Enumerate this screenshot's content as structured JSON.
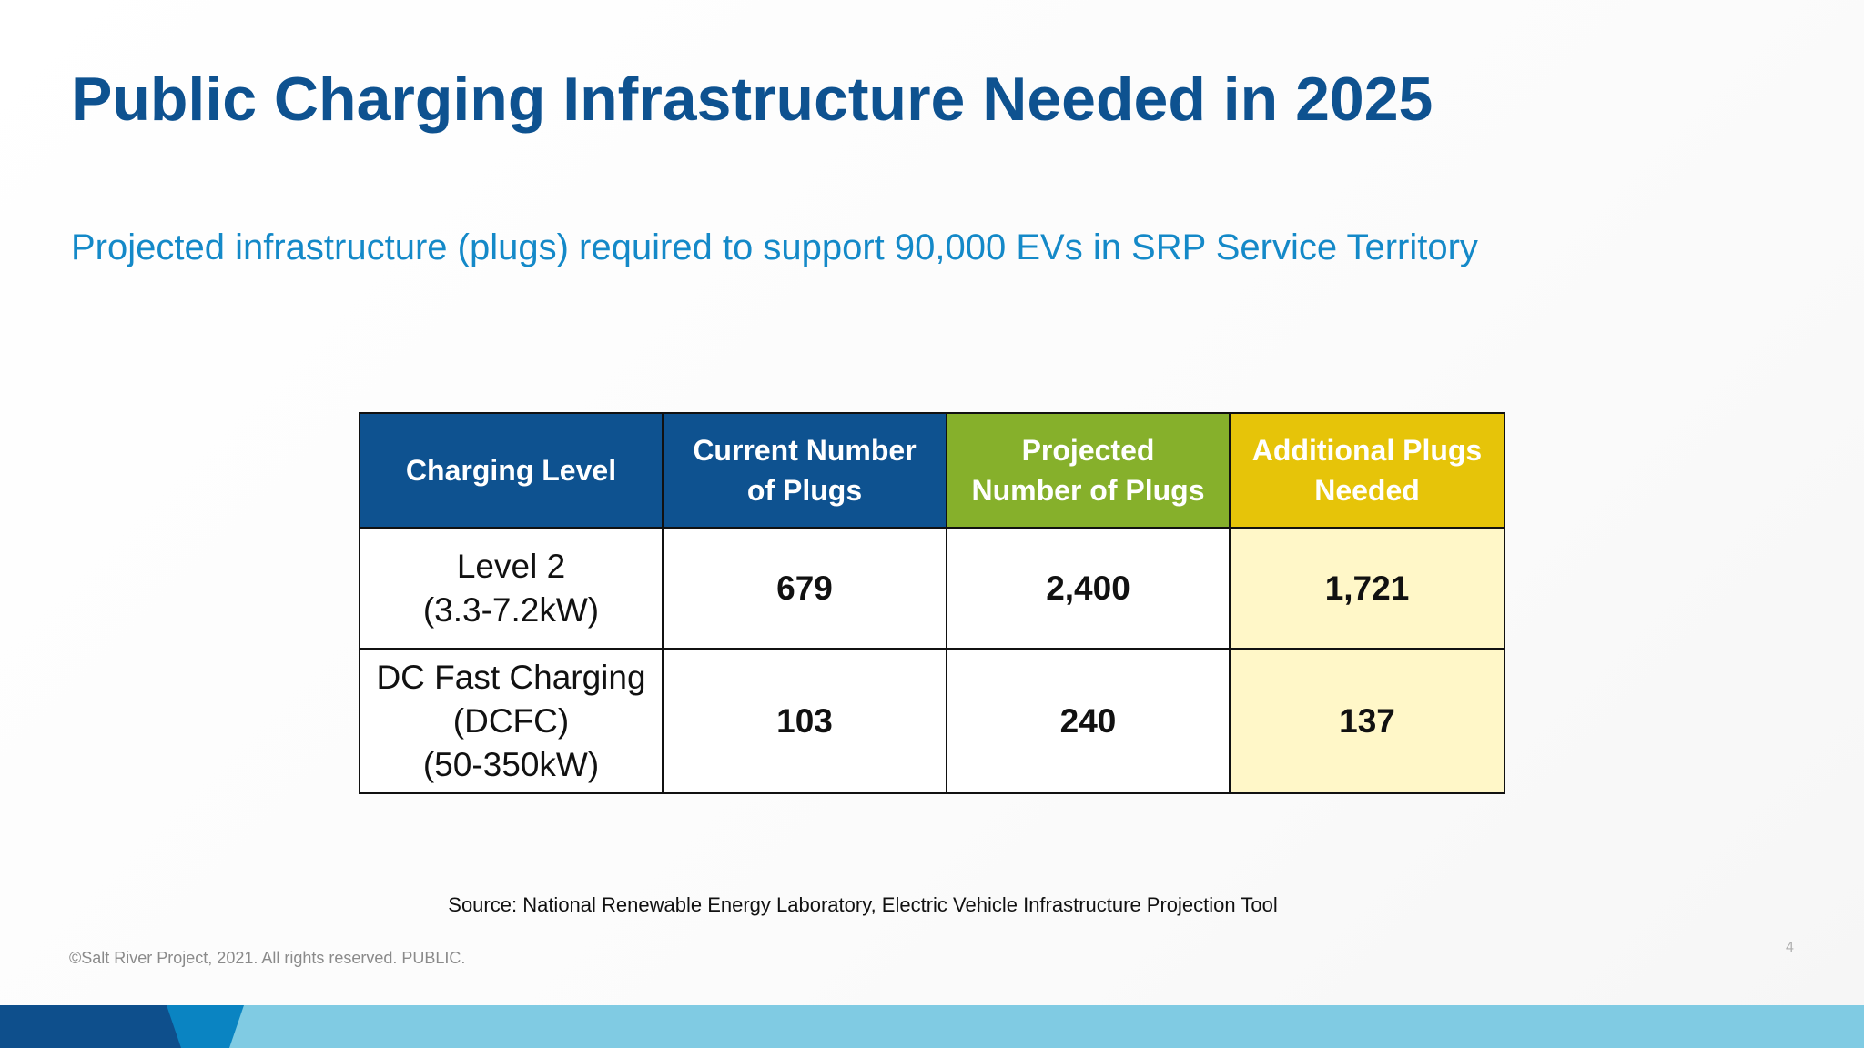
{
  "slide": {
    "title": "Public Charging Infrastructure Needed in 2025",
    "subtitle": "Projected infrastructure (plugs) required to support 90,000 EVs in SRP Service Territory",
    "source": "Source: National Renewable Energy Laboratory, Electric Vehicle Infrastructure Projection Tool",
    "copyright": "©Salt River Project, 2021. All rights reserved. PUBLIC.",
    "page_number": "4"
  },
  "table": {
    "headers": [
      {
        "line1": "Charging Level",
        "line2": ""
      },
      {
        "line1": "Current Number",
        "line2": "of Plugs"
      },
      {
        "line1": "Projected",
        "line2": "Number of Plugs"
      },
      {
        "line1": "Additional Plugs",
        "line2": "Needed"
      }
    ],
    "rows": [
      {
        "label_lines": [
          "Level 2",
          "(3.3-7.2kW)"
        ],
        "current": "679",
        "projected": "2,400",
        "additional": "1,721"
      },
      {
        "label_lines": [
          "DC Fast Charging",
          "(DCFC)",
          "(50-350kW)"
        ],
        "current": "103",
        "projected": "240",
        "additional": "137"
      }
    ]
  },
  "colors": {
    "title": "#0e5290",
    "subtitle": "#1489c8",
    "header_navy": "#0e5290",
    "header_green": "#86b02b",
    "header_yellow": "#e6c409",
    "additional_cell_fill": "#fff7c8",
    "footer_dark_blue": "#0e4f8c",
    "footer_mid_blue": "#0a84c2",
    "footer_light_blue": "#80cbe3"
  }
}
